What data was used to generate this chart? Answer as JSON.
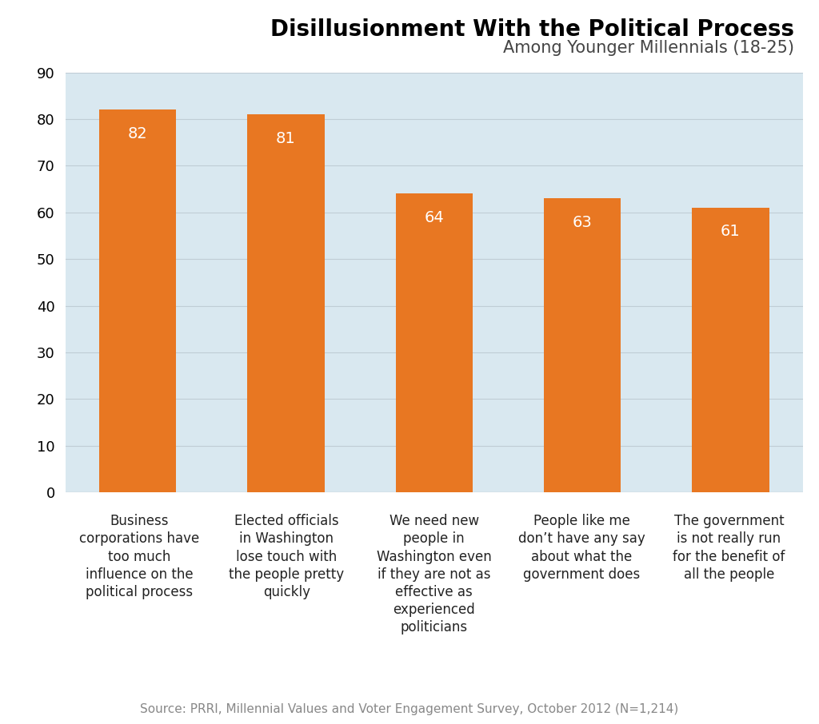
{
  "title": "Disillusionment With the Political Process",
  "subtitle": "Among Younger Millennials (18-25)",
  "source": "Source: PRRI, Millennial Values and Voter Engagement Survey, October 2012 (N=1,214)",
  "categories": [
    "Business\ncorporations have\ntoo much\ninfluence on the\npolitical process",
    "Elected officials\nin Washington\nlose touch with\nthe people pretty\nquickly",
    "We need new\npeople in\nWashington even\nif they are not as\neffective as\nexperienced\npoliticians",
    "People like me\ndon’t have any say\nabout what the\ngovernment does",
    "The government\nis not really run\nfor the benefit of\nall the people"
  ],
  "values": [
    82,
    81,
    64,
    63,
    61
  ],
  "bar_color": "#E87722",
  "plot_bg_color": "#d9e8f0",
  "outer_bg_color": "#ffffff",
  "ylim": [
    0,
    90
  ],
  "yticks": [
    0,
    10,
    20,
    30,
    40,
    50,
    60,
    70,
    80,
    90
  ],
  "title_fontsize": 20,
  "subtitle_fontsize": 15,
  "label_fontsize": 12,
  "tick_label_fontsize": 13,
  "value_label_fontsize": 14,
  "source_fontsize": 11,
  "grid_color": "#c0cdd5",
  "title_color": "#000000",
  "subtitle_color": "#444444",
  "source_color": "#888888"
}
